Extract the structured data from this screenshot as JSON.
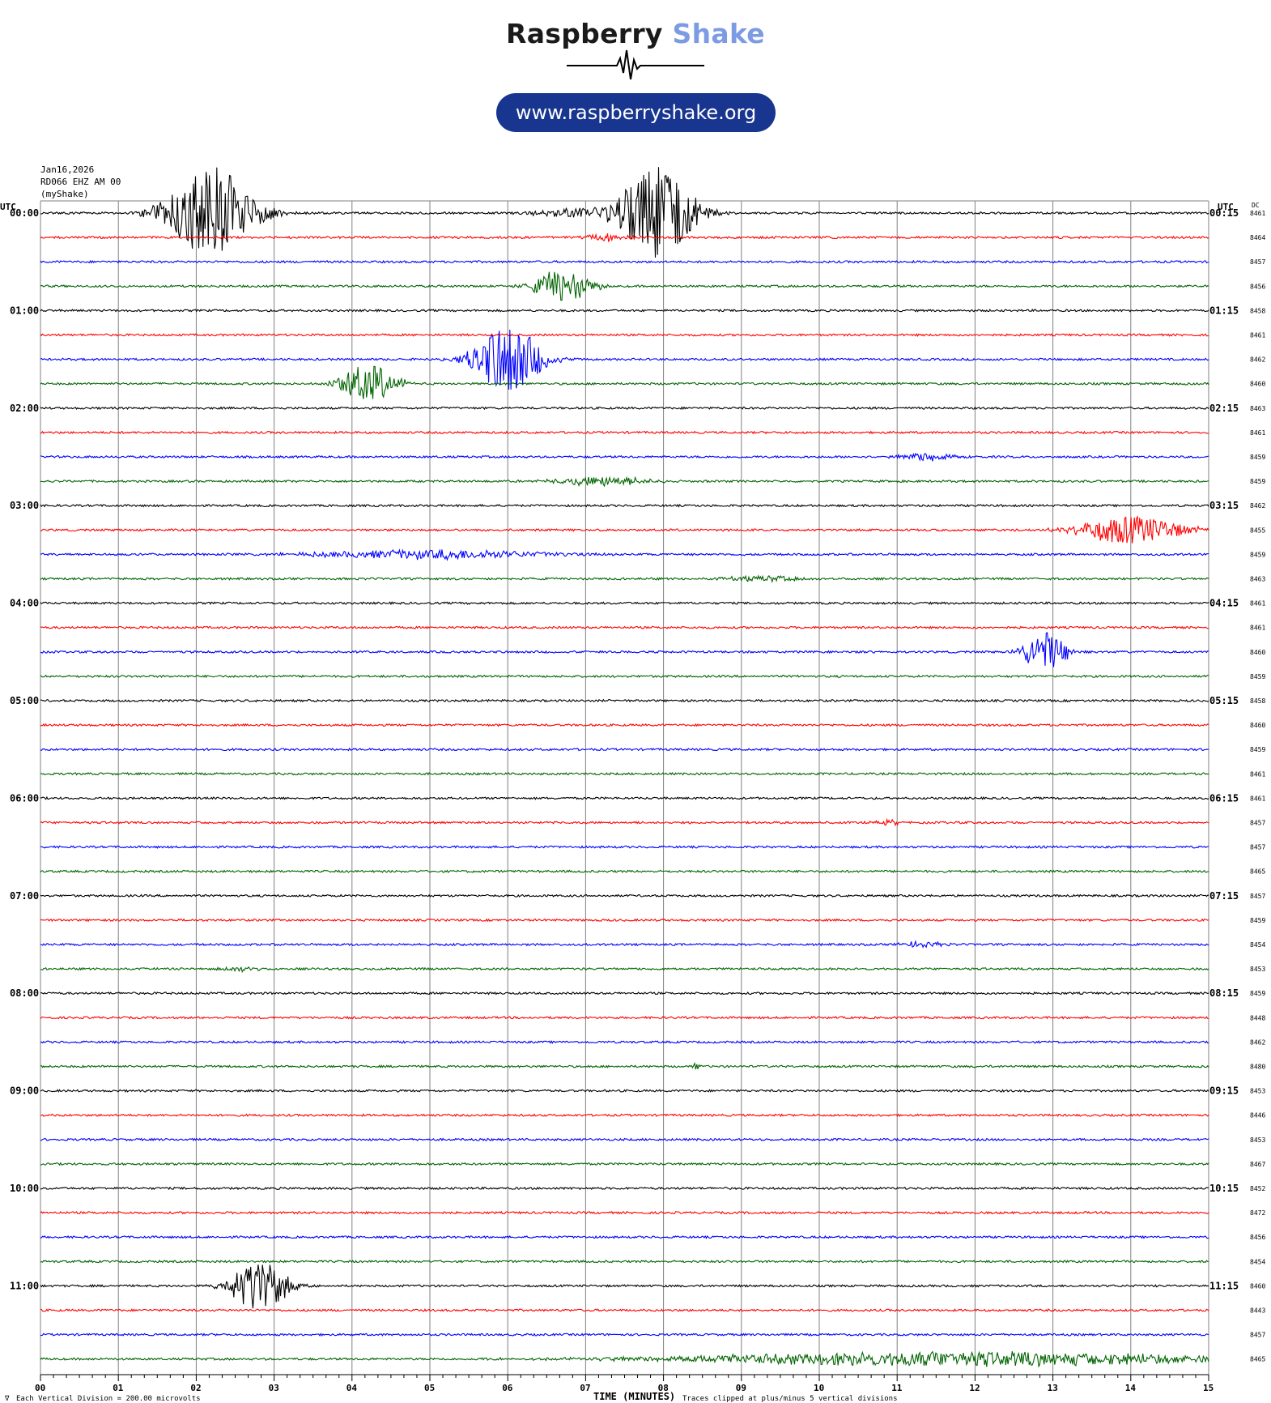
{
  "brand": {
    "name_part1": "Raspberry",
    "name_part2": "Shake",
    "url": "www.raspberryshake.org"
  },
  "station": {
    "date": "Jan16,2026",
    "channel": "RD066 EHZ AM 00",
    "source": "(myShake)"
  },
  "footer": {
    "division_note": "Each Vertical Division = 200.00 microvolts",
    "xlabel": "TIME (MINUTES)",
    "clip_note": "Traces clipped at plus/minus 5 vertical divisions"
  },
  "colors": {
    "trace_cycle": [
      "#000000",
      "#ff0000",
      "#0000ff",
      "#006400"
    ],
    "grid": "#808080",
    "brand_dark": "#1a1a1a",
    "brand_accent": "#7d9be3",
    "pill": "#18358f"
  },
  "chart_data": {
    "type": "line",
    "title": "",
    "xlabel": "TIME (MINUTES)",
    "ylabel": "",
    "x_range": [
      0,
      15
    ],
    "x_ticks": [
      "00",
      "01",
      "02",
      "03",
      "04",
      "05",
      "06",
      "07",
      "08",
      "09",
      "10",
      "11",
      "12",
      "13",
      "14",
      "15"
    ],
    "left_axis_header": "UTC",
    "right_axis_header": "UTC",
    "dc_header": "DC",
    "grid": true,
    "rows": [
      {
        "left": "00:00",
        "right": "00:15",
        "dc": "8461",
        "events": [
          [
            2.2,
            9.5,
            0.9
          ],
          [
            7.9,
            9.5,
            0.8
          ],
          [
            6.9,
            1.0,
            0.9
          ]
        ]
      },
      {
        "left": "",
        "right": "",
        "dc": "8464",
        "events": [
          [
            7.3,
            0.8,
            0.5
          ]
        ]
      },
      {
        "left": "",
        "right": "",
        "dc": "8457",
        "events": []
      },
      {
        "left": "",
        "right": "",
        "dc": "8456",
        "events": [
          [
            6.7,
            3.5,
            0.6
          ]
        ]
      },
      {
        "left": "01:00",
        "right": "01:15",
        "dc": "8458",
        "events": []
      },
      {
        "left": "",
        "right": "",
        "dc": "8461",
        "events": []
      },
      {
        "left": "",
        "right": "",
        "dc": "8462",
        "events": [
          [
            6.0,
            7.5,
            0.7
          ]
        ]
      },
      {
        "left": "",
        "right": "",
        "dc": "8460",
        "events": [
          [
            4.2,
            4.0,
            0.6
          ]
        ]
      },
      {
        "left": "02:00",
        "right": "02:15",
        "dc": "8463",
        "events": []
      },
      {
        "left": "",
        "right": "",
        "dc": "8461",
        "events": []
      },
      {
        "left": "",
        "right": "",
        "dc": "8459",
        "events": [
          [
            11.4,
            0.9,
            0.6
          ]
        ]
      },
      {
        "left": "",
        "right": "",
        "dc": "8459",
        "events": [
          [
            7.2,
            1.0,
            1.0
          ]
        ]
      },
      {
        "left": "03:00",
        "right": "03:15",
        "dc": "8462",
        "events": []
      },
      {
        "left": "",
        "right": "",
        "dc": "8455",
        "events": [
          [
            14.0,
            3.0,
            1.1
          ]
        ]
      },
      {
        "left": "",
        "right": "",
        "dc": "8459",
        "events": [
          [
            5.0,
            1.0,
            2.5
          ]
        ]
      },
      {
        "left": "",
        "right": "",
        "dc": "8463",
        "events": [
          [
            9.3,
            0.6,
            0.8
          ]
        ]
      },
      {
        "left": "04:00",
        "right": "04:15",
        "dc": "8461",
        "events": []
      },
      {
        "left": "",
        "right": "",
        "dc": "8461",
        "events": []
      },
      {
        "left": "",
        "right": "",
        "dc": "8460",
        "events": [
          [
            12.9,
            4.0,
            0.5
          ]
        ]
      },
      {
        "left": "",
        "right": "",
        "dc": "8459",
        "events": []
      },
      {
        "left": "05:00",
        "right": "05:15",
        "dc": "8458",
        "events": []
      },
      {
        "left": "",
        "right": "",
        "dc": "8460",
        "events": []
      },
      {
        "left": "",
        "right": "",
        "dc": "8459",
        "events": []
      },
      {
        "left": "",
        "right": "",
        "dc": "8461",
        "events": []
      },
      {
        "left": "06:00",
        "right": "06:15",
        "dc": "8461",
        "events": []
      },
      {
        "left": "",
        "right": "",
        "dc": "8457",
        "events": [
          [
            10.9,
            0.5,
            0.3
          ]
        ]
      },
      {
        "left": "",
        "right": "",
        "dc": "8457",
        "events": []
      },
      {
        "left": "",
        "right": "",
        "dc": "8465",
        "events": []
      },
      {
        "left": "07:00",
        "right": "07:15",
        "dc": "8457",
        "events": []
      },
      {
        "left": "",
        "right": "",
        "dc": "8459",
        "events": []
      },
      {
        "left": "",
        "right": "",
        "dc": "8454",
        "events": [
          [
            11.3,
            0.6,
            0.5
          ]
        ]
      },
      {
        "left": "",
        "right": "",
        "dc": "8453",
        "events": [
          [
            2.6,
            0.5,
            0.5
          ]
        ]
      },
      {
        "left": "08:00",
        "right": "08:15",
        "dc": "8459",
        "events": []
      },
      {
        "left": "",
        "right": "",
        "dc": "8448",
        "events": []
      },
      {
        "left": "",
        "right": "",
        "dc": "8462",
        "events": []
      },
      {
        "left": "",
        "right": "",
        "dc": "8480",
        "events": [
          [
            8.4,
            0.8,
            0.1
          ]
        ]
      },
      {
        "left": "09:00",
        "right": "09:15",
        "dc": "8453",
        "events": []
      },
      {
        "left": "",
        "right": "",
        "dc": "8446",
        "events": []
      },
      {
        "left": "",
        "right": "",
        "dc": "8453",
        "events": []
      },
      {
        "left": "",
        "right": "",
        "dc": "8467",
        "events": []
      },
      {
        "left": "10:00",
        "right": "10:15",
        "dc": "8452",
        "events": []
      },
      {
        "left": "",
        "right": "",
        "dc": "8472",
        "events": []
      },
      {
        "left": "",
        "right": "",
        "dc": "8456",
        "events": []
      },
      {
        "left": "",
        "right": "",
        "dc": "8454",
        "events": []
      },
      {
        "left": "11:00",
        "right": "11:15",
        "dc": "8460",
        "events": [
          [
            2.8,
            5.5,
            0.6
          ]
        ]
      },
      {
        "left": "",
        "right": "",
        "dc": "8443",
        "events": []
      },
      {
        "left": "",
        "right": "",
        "dc": "8457",
        "events": []
      },
      {
        "left": "",
        "right": "",
        "dc": "8465",
        "events": [
          [
            11.8,
            1.5,
            6.0
          ]
        ]
      }
    ]
  }
}
